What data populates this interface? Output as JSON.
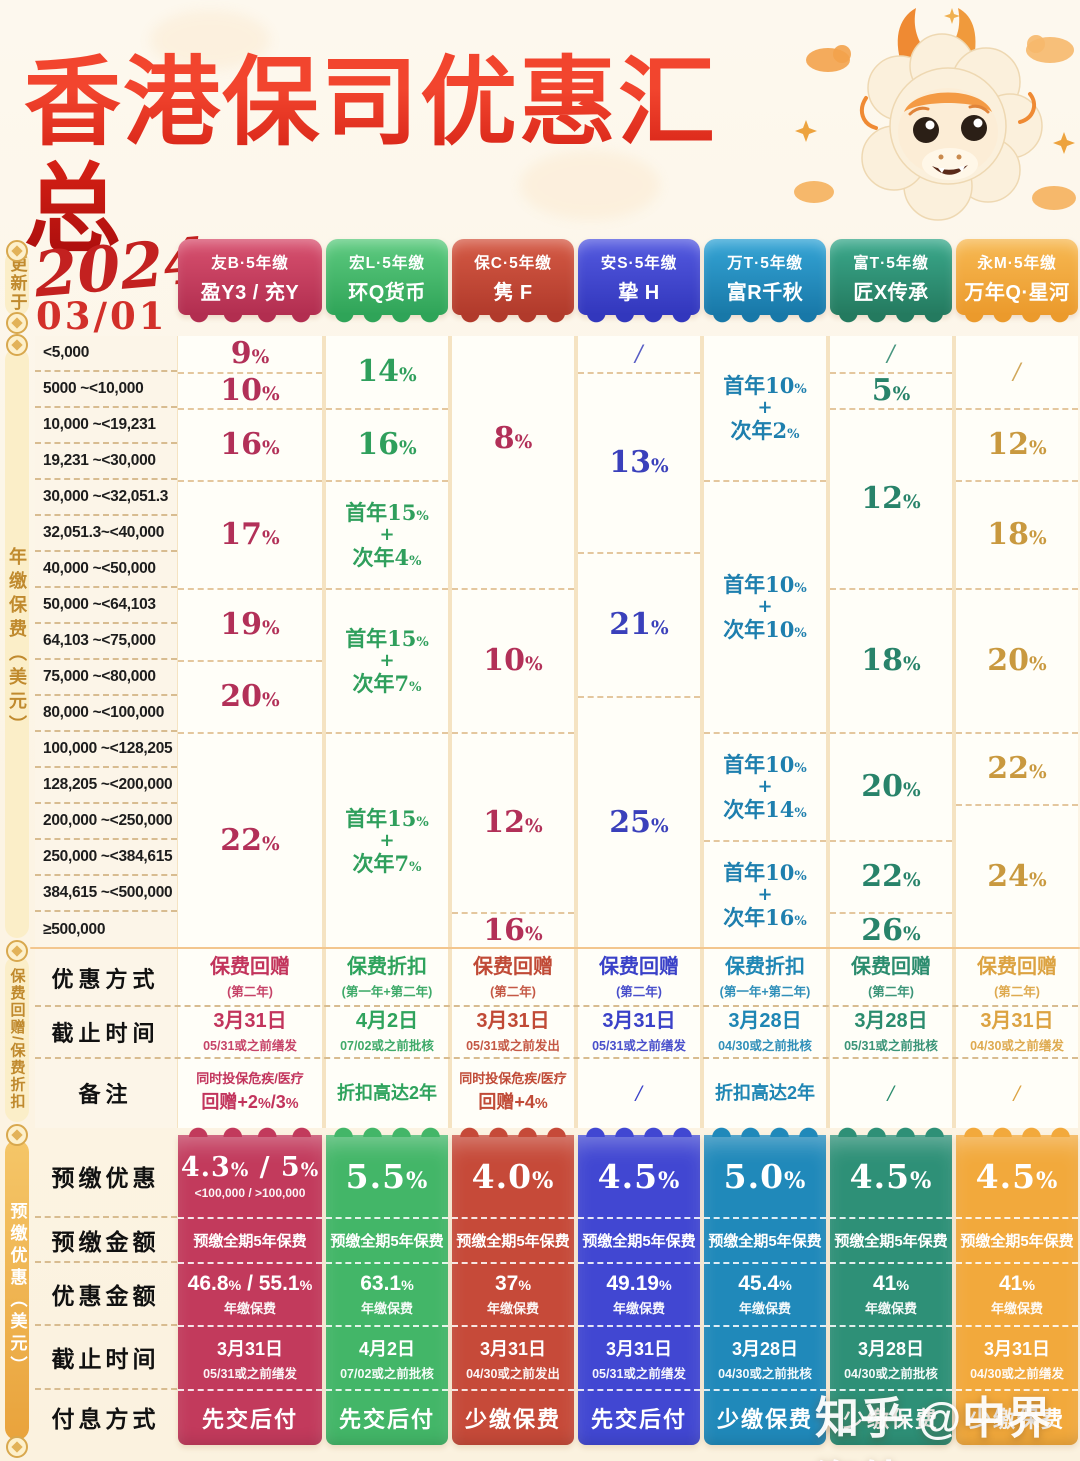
{
  "header": {
    "title": "香港保司优惠汇总",
    "updated_label": "更新于",
    "year_script": "2024",
    "update_date": "03/01"
  },
  "sections": {
    "annual_premium_label": "年缴保费（美元）",
    "rebate_label": "保费回赠/保费折扣",
    "prepay_label": "预缴优惠（美元）"
  },
  "watermark": "知乎 @中界海外",
  "premium_ranges": [
    "<5,000",
    "5000  ~<10,000",
    "10,000  ~<19,231",
    "19,231  ~<30,000",
    "30,000  ~<32,051.3",
    "32,051.3~<40,000",
    "40,000  ~<50,000",
    "50,000  ~<64,103",
    "64,103  ~<75,000",
    "75,000  ~<80,000",
    "80,000  ~<100,000",
    "100,000 ~<128,205",
    "128,205 ~<200,000",
    "200,000 ~<250,000",
    "250,000 ~<384,615",
    "384,615 ~<500,000",
    "≥500,000"
  ],
  "columns": [
    {
      "series": "友B·5年缴",
      "product": "盈Y3 / 充Y",
      "badge_top": "#d8516f",
      "badge_bottom": "#b22e50",
      "value_color": "#b23058",
      "mid_color": "#c2345c",
      "pillar_color": "#c23a5c",
      "rates": [
        {
          "span": 1,
          "lines": [
            "9%"
          ]
        },
        {
          "span": 1,
          "lines": [
            "10%"
          ]
        },
        {
          "span": 2,
          "lines": [
            "16%"
          ]
        },
        {
          "span": 3,
          "lines": [
            "17%"
          ]
        },
        {
          "span": 2,
          "lines": [
            "19%"
          ]
        },
        {
          "span": 2,
          "lines": [
            "20%"
          ]
        },
        {
          "span": 6,
          "lines": [
            "22%"
          ]
        }
      ]
    },
    {
      "series": "宏L·5年缴",
      "product": "环Q货币",
      "badge_top": "#5ecb80",
      "badge_bottom": "#2fa458",
      "value_color": "#2f9f5c",
      "mid_color": "#2fa35d",
      "pillar_color": "#43b668",
      "rates": [
        {
          "span": 2,
          "lines": [
            "14%"
          ]
        },
        {
          "span": 2,
          "lines": [
            "16%"
          ]
        },
        {
          "span": 3,
          "lines": [
            "首年15%",
            "+",
            "次年4%"
          ]
        },
        {
          "span": 4,
          "lines": [
            "首年15%",
            "+",
            "次年7%"
          ]
        },
        {
          "span": 6,
          "lines": [
            "首年15%",
            "+",
            "次年7%"
          ]
        }
      ]
    },
    {
      "series": "保C·5年缴",
      "product": "隽 F",
      "badge_top": "#d55a45",
      "badge_bottom": "#b13a2b",
      "value_color": "#b23058",
      "mid_color": "#c04a36",
      "pillar_color": "#c64a39",
      "rates": [
        {
          "span": 7,
          "lines": [
            "8%"
          ]
        },
        {
          "span": 4,
          "lines": [
            "10%"
          ]
        },
        {
          "span": 5,
          "lines": [
            "12%"
          ]
        },
        {
          "span": 1,
          "lines": [
            "16%"
          ]
        }
      ]
    },
    {
      "series": "安S·5年缴",
      "product": "挚 H",
      "badge_top": "#545ae0",
      "badge_bottom": "#3237bd",
      "value_color": "#3a40bb",
      "mid_color": "#3a41c8",
      "pillar_color": "#4147d2",
      "rates": [
        {
          "span": 1,
          "lines": [
            "/"
          ]
        },
        {
          "span": 5,
          "lines": [
            "13%"
          ]
        },
        {
          "span": 4,
          "lines": [
            "21%"
          ]
        },
        {
          "span": 7,
          "lines": [
            "25%"
          ]
        }
      ]
    },
    {
      "series": "万T·5年缴",
      "product": "富R千秋",
      "badge_top": "#35a5d6",
      "badge_bottom": "#1878a8",
      "value_color": "#1e7fae",
      "mid_color": "#1f86b4",
      "pillar_color": "#2089ba",
      "rates": [
        {
          "span": 4,
          "lines": [
            "首年10%",
            "+",
            "次年2%"
          ]
        },
        {
          "span": 7,
          "lines": [
            "首年10%",
            "+",
            "次年10%"
          ]
        },
        {
          "span": 3,
          "lines": [
            "首年10%",
            "+",
            "次年14%"
          ]
        },
        {
          "span": 3,
          "lines": [
            "首年10%",
            "+",
            "次年16%"
          ]
        }
      ]
    },
    {
      "series": "富T·5年缴",
      "product": "匠X传承",
      "badge_top": "#3ba98c",
      "badge_bottom": "#247a5f",
      "value_color": "#28836a",
      "mid_color": "#2b8c6e",
      "pillar_color": "#2e9077",
      "rates": [
        {
          "span": 1,
          "lines": [
            "/"
          ]
        },
        {
          "span": 1,
          "lines": [
            "5%"
          ]
        },
        {
          "span": 5,
          "lines": [
            "12%"
          ]
        },
        {
          "span": 4,
          "lines": [
            "18%"
          ]
        },
        {
          "span": 3,
          "lines": [
            "20%"
          ]
        },
        {
          "span": 2,
          "lines": [
            "22%"
          ]
        },
        {
          "span": 1,
          "lines": [
            "26%"
          ]
        }
      ]
    },
    {
      "series": "永M·5年缴",
      "product": "万年Q·星河",
      "badge_top": "#f7b953",
      "badge_bottom": "#eb9a2c",
      "value_color": "#c9993f",
      "mid_color": "#dca342",
      "pillar_color": "#f2a93c",
      "rates": [
        {
          "span": 2,
          "lines": [
            "/"
          ]
        },
        {
          "span": 2,
          "lines": [
            "12%"
          ]
        },
        {
          "span": 3,
          "lines": [
            "18%"
          ]
        },
        {
          "span": 4,
          "lines": [
            "20%"
          ]
        },
        {
          "span": 2,
          "lines": [
            "22%"
          ]
        },
        {
          "span": 4,
          "lines": [
            "24%"
          ]
        }
      ]
    }
  ],
  "middle": {
    "rows": [
      {
        "label": "优惠方式",
        "cells": [
          {
            "l1": "保费回赠",
            "l2": "(第二年)"
          },
          {
            "l1": "保费折扣",
            "l2": "(第一年+第二年)"
          },
          {
            "l1": "保费回赠",
            "l2": "(第二年)"
          },
          {
            "l1": "保费回赠",
            "l2": "(第二年)"
          },
          {
            "l1": "保费折扣",
            "l2": "(第一年+第二年)"
          },
          {
            "l1": "保费回赠",
            "l2": "(第二年)"
          },
          {
            "l1": "保费回赠",
            "l2": "(第二年)"
          }
        ]
      },
      {
        "label": "截止时间",
        "cells": [
          {
            "l1": "3月31日",
            "l2": "05/31或之前缮发"
          },
          {
            "l1": "4月2日",
            "l2": "07/02或之前批核"
          },
          {
            "l1": "3月31日",
            "l2": "05/31或之前发出"
          },
          {
            "l1": "3月31日",
            "l2": "05/31或之前缮发"
          },
          {
            "l1": "3月28日",
            "l2": "04/30或之前批核"
          },
          {
            "l1": "3月28日",
            "l2": "05/31或之前批核"
          },
          {
            "l1": "3月31日",
            "l2": "04/30或之前缮发"
          }
        ]
      },
      {
        "label": "备注",
        "cells": [
          {
            "l1": "同时投保危疾/医疗",
            "l2": "回赠+2%/3%"
          },
          {
            "l1": "折扣高达2年"
          },
          {
            "l1": "同时投保危疾/医疗",
            "l2": "回赠+4%"
          },
          {
            "l1": "/"
          },
          {
            "l1": "折扣高达2年"
          },
          {
            "l1": "/"
          },
          {
            "l1": "/"
          }
        ]
      }
    ]
  },
  "bottom": {
    "rows": [
      {
        "label": "预缴优惠",
        "cells": [
          {
            "l1": "4.3% / 5%",
            "l2": "<100,000 / >100,000"
          },
          {
            "l1": "5.5%"
          },
          {
            "l1": "4.0%"
          },
          {
            "l1": "4.5%"
          },
          {
            "l1": "5.0%"
          },
          {
            "l1": "4.5%"
          },
          {
            "l1": "4.5%"
          }
        ]
      },
      {
        "label": "预缴金额",
        "cells": [
          {
            "l1": "预缴全期5年保费"
          },
          {
            "l1": "预缴全期5年保费"
          },
          {
            "l1": "预缴全期5年保费"
          },
          {
            "l1": "预缴全期5年保费"
          },
          {
            "l1": "预缴全期5年保费"
          },
          {
            "l1": "预缴全期5年保费"
          },
          {
            "l1": "预缴全期5年保费"
          }
        ]
      },
      {
        "label": "优惠金额",
        "cells": [
          {
            "l1": "46.8% / 55.1%",
            "l2": "年缴保费"
          },
          {
            "l1": "63.1%",
            "l2": "年缴保费"
          },
          {
            "l1": "37%",
            "l2": "年缴保费"
          },
          {
            "l1": "49.19%",
            "l2": "年缴保费"
          },
          {
            "l1": "45.4%",
            "l2": "年缴保费"
          },
          {
            "l1": "41%",
            "l2": "年缴保费"
          },
          {
            "l1": "41%",
            "l2": "年缴保费"
          }
        ]
      },
      {
        "label": "截止时间",
        "cells": [
          {
            "l1": "3月31日",
            "l2": "05/31或之前缮发"
          },
          {
            "l1": "4月2日",
            "l2": "07/02或之前批核"
          },
          {
            "l1": "3月31日",
            "l2": "04/30或之前发出"
          },
          {
            "l1": "3月31日",
            "l2": "05/31或之前缮发"
          },
          {
            "l1": "3月28日",
            "l2": "04/30或之前批核"
          },
          {
            "l1": "3月28日",
            "l2": "04/30或之前批核"
          },
          {
            "l1": "3月31日",
            "l2": "04/30或之前缮发"
          }
        ]
      },
      {
        "label": "付息方式",
        "cells": [
          {
            "l1": "先交后付"
          },
          {
            "l1": "先交后付"
          },
          {
            "l1": "少缴保费"
          },
          {
            "l1": "先交后付"
          },
          {
            "l1": "少缴保费"
          },
          {
            "l1": "少缴保费"
          },
          {
            "l1": "少缴保费"
          }
        ]
      }
    ]
  }
}
